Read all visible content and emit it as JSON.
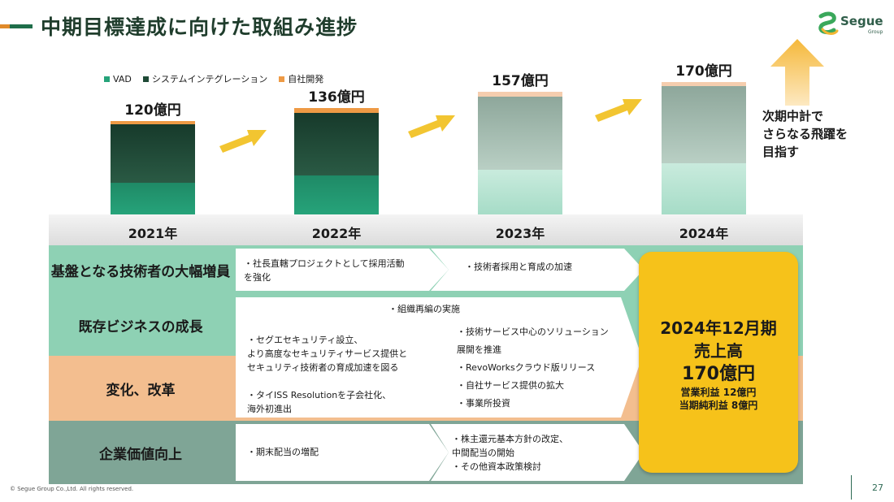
{
  "title": "中期目標達成に向けた取組み進捗",
  "logo": {
    "name": "Segue",
    "sub": "Group"
  },
  "legend": [
    {
      "label": "VAD",
      "color": "#26a37a"
    },
    {
      "label": "システムインテグレーション",
      "color": "#1e4a36"
    },
    {
      "label": "自社開発",
      "color": "#ee9a45"
    }
  ],
  "chart_data": {
    "type": "bar",
    "categories": [
      "2021年",
      "2022年",
      "2023年",
      "2024年"
    ],
    "series": [
      {
        "name": "VAD",
        "values": [
          41,
          50,
          58,
          66
        ]
      },
      {
        "name": "システムインテグレーション",
        "values": [
          76,
          82,
          95,
          100
        ]
      },
      {
        "name": "自社開発",
        "values": [
          3,
          4,
          4,
          4
        ]
      }
    ],
    "totals": [
      120,
      136,
      157,
      170
    ],
    "data_labels": [
      "120億円",
      "136億円",
      "157億円",
      "170億円"
    ],
    "colors": {
      "actual": [
        "#26a37a",
        "#1e4a36",
        "#ee9a45"
      ],
      "plan": [
        "#a6dcc7",
        "#8ea79b",
        "#f5cdae"
      ]
    }
  },
  "next_plan_text": "次期中計で\nさらなる飛躍を\n目指す",
  "years": [
    "2021年",
    "2022年",
    "2023年",
    "2024年"
  ],
  "rows": [
    {
      "label": "基盤となる技術者の大幅増員",
      "color": "#8ed1b4"
    },
    {
      "label": "既存ビジネスの成長",
      "color": "#8ed1b4"
    },
    {
      "label": "変化、改革",
      "color": "#f3be8f"
    },
    {
      "label": "企業価値向上",
      "color": "#7fa596"
    }
  ],
  "items": {
    "r1_a": "・社長直轄プロジェクトとして採用活動\n  を強化",
    "r1_b": "・技術者採用と育成の加速",
    "mid_top": "・組織再編の実施",
    "mid_left": "・セグエセキュリティ設立、\n  より高度なセキュリティサービス提供と\n  セキュリティ技術者の育成加速を図る\n\n・タイISS Resolutionを子会社化、\n  海外初進出",
    "mid_right": "・技術サービス中心のソリューション\n  展開を推進\n・RevoWorksクラウド版リリース\n・自社サービス提供の拡大\n・事業所投資",
    "r4_a": "・期末配当の増配",
    "r4_b": "・株主還元基本方針の改定、\n  中間配当の開始\n・その他資本政策検討"
  },
  "goal": {
    "line1": "2024年12月期",
    "line2": "売上高",
    "line3": "170億円",
    "line4": "営業利益  12億円",
    "line5": "当期純利益  8億円"
  },
  "footer": {
    "copyright": "© Segue Group Co.,Ltd. All rights reserved.",
    "page": "27"
  }
}
